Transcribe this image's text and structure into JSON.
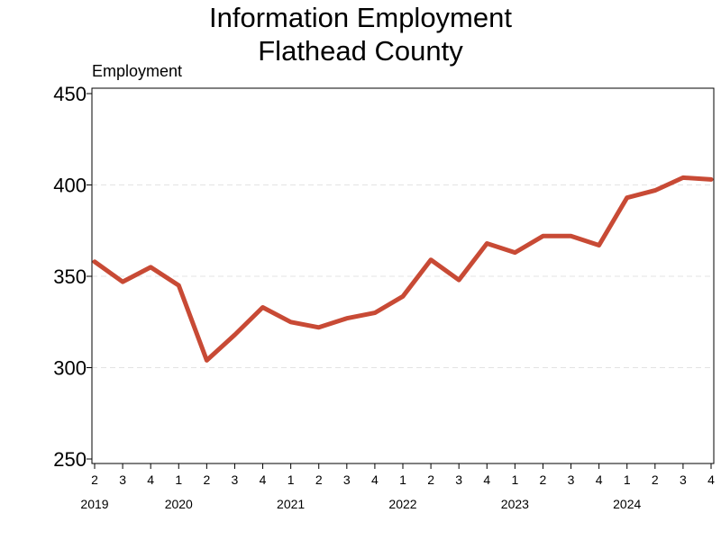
{
  "chart_data": {
    "type": "line",
    "title": "Information Employment",
    "subtitle": "Flathead County",
    "ylabel": "Employment",
    "xlabel": "",
    "ylim": [
      250,
      450
    ],
    "yticks": [
      250,
      300,
      350,
      400,
      450
    ],
    "grid": true,
    "line_color": "#c84a35",
    "x": [
      "2019 Q2",
      "2019 Q3",
      "2019 Q4",
      "2020 Q1",
      "2020 Q2",
      "2020 Q3",
      "2020 Q4",
      "2021 Q1",
      "2021 Q2",
      "2021 Q3",
      "2021 Q4",
      "2022 Q1",
      "2022 Q2",
      "2022 Q3",
      "2022 Q4",
      "2023 Q1",
      "2023 Q2",
      "2023 Q3",
      "2023 Q4",
      "2024 Q1",
      "2024 Q2",
      "2024 Q3",
      "2024 Q4"
    ],
    "quarter_labels": [
      "2",
      "3",
      "4",
      "1",
      "2",
      "3",
      "4",
      "1",
      "2",
      "3",
      "4",
      "1",
      "2",
      "3",
      "4",
      "1",
      "2",
      "3",
      "4",
      "1",
      "2",
      "3",
      "4"
    ],
    "years": [
      {
        "label": "2019",
        "index": 0
      },
      {
        "label": "2020",
        "index": 3
      },
      {
        "label": "2021",
        "index": 7
      },
      {
        "label": "2022",
        "index": 11
      },
      {
        "label": "2023",
        "index": 15
      },
      {
        "label": "2024",
        "index": 19
      }
    ],
    "series": [
      {
        "values": [
          358,
          347,
          355,
          345,
          304,
          318,
          333,
          325,
          322,
          327,
          330,
          339,
          359,
          348,
          368,
          363,
          372,
          372,
          367,
          393,
          397,
          404,
          403
        ]
      }
    ]
  }
}
